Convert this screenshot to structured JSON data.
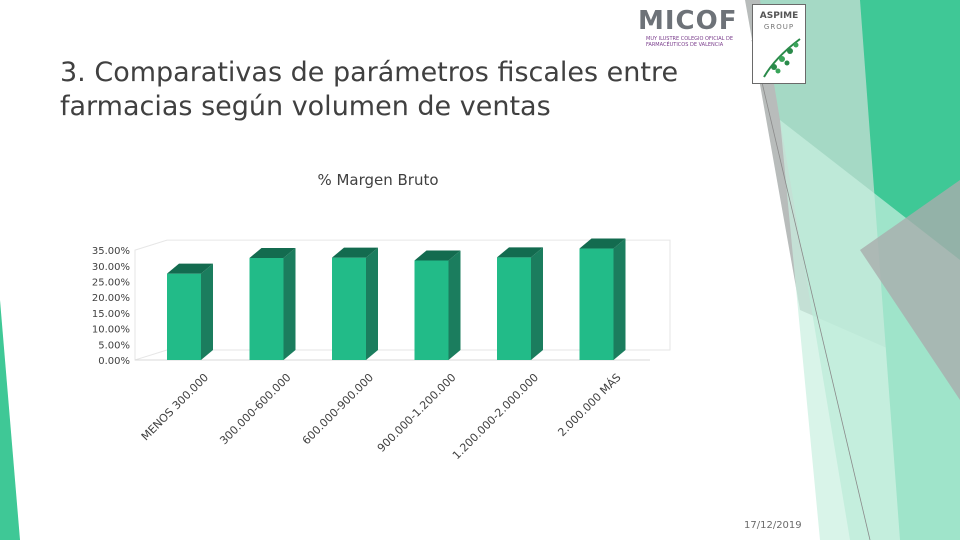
{
  "slide": {
    "title_lines": [
      "3. Comparativas de parámetros fiscales entre",
      "farmacias según volumen de ventas"
    ],
    "date": "17/12/2019",
    "logos": {
      "micof": {
        "name": "MICOF",
        "subtitle": "MUY ILUSTRE COLEGIO OFICIAL DE FARMACÉUTICOS DE VALENCIA"
      },
      "aspime": {
        "name": "ASPIME",
        "group": "GROUP"
      }
    },
    "colors": {
      "accent": "#3fc896",
      "bar_front": "#22bb88",
      "bar_side": "#1b7d5e",
      "bar_top": "#136b4f"
    }
  },
  "chart_data": {
    "type": "bar",
    "title": "% Margen Bruto",
    "categories": [
      "MENOS 300.000",
      "300.000-600.000",
      "600.000-900.000",
      "900.000-1.200.000",
      "1.200.000-2.000.000",
      "2.000.000 MÁS"
    ],
    "category_tick_labels": [
      "MENOS 300.000",
      "300.000-600.000",
      "600.000-900.000",
      "900.000-1.200.000",
      "1.200.000-2.000.000",
      "2.000.000 MÁS"
    ],
    "values": [
      27.5,
      32.5,
      32.6,
      31.7,
      32.7,
      35.5
    ],
    "ylim": [
      0,
      35
    ],
    "y_ticks": [
      "0.00%",
      "5.00%",
      "10.00%",
      "15.00%",
      "20.00%",
      "25.00%",
      "30.00%",
      "35.00%"
    ],
    "y_tick_values": [
      0,
      5,
      10,
      15,
      20,
      25,
      30,
      35
    ],
    "xlabel": "",
    "ylabel": "",
    "legend": "none",
    "grid": false,
    "style": "3d"
  }
}
